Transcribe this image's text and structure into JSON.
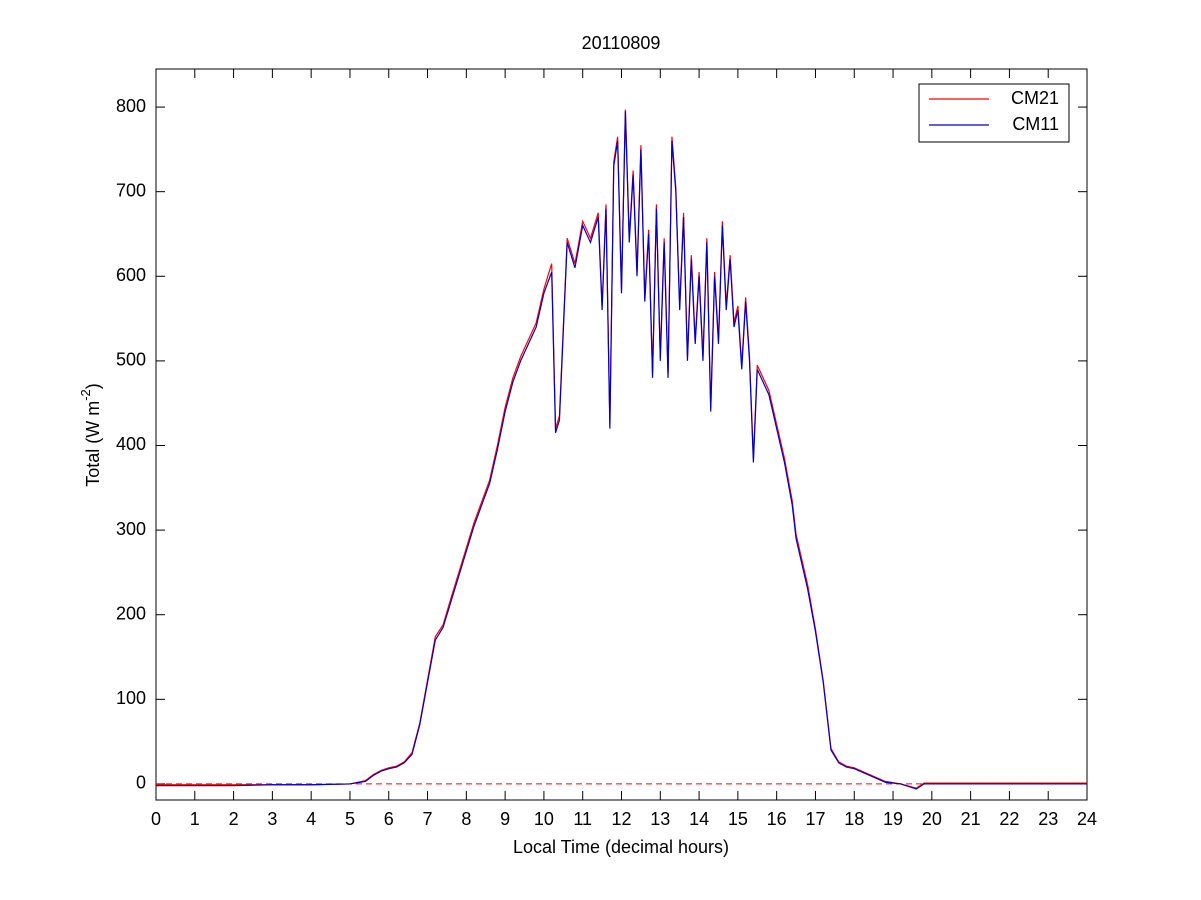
{
  "chart_data": {
    "type": "line",
    "title": "20110809",
    "xlabel": "Local Time (decimal hours)",
    "ylabel_parts": [
      "Total (W m",
      "-2",
      ")"
    ],
    "x": [
      0,
      1,
      2,
      3,
      4,
      5,
      5.4,
      5.6,
      5.8,
      6,
      6.2,
      6.4,
      6.6,
      6.8,
      7,
      7.2,
      7.4,
      7.6,
      7.8,
      8,
      8.2,
      8.4,
      8.6,
      8.8,
      9,
      9.2,
      9.4,
      9.6,
      9.8,
      10,
      10.2,
      10.3,
      10.4,
      10.6,
      10.8,
      11,
      11.2,
      11.4,
      11.5,
      11.6,
      11.7,
      11.8,
      11.9,
      12,
      12.1,
      12.2,
      12.3,
      12.4,
      12.5,
      12.6,
      12.7,
      12.8,
      12.9,
      13,
      13.1,
      13.2,
      13.3,
      13.4,
      13.5,
      13.6,
      13.7,
      13.8,
      13.9,
      14,
      14.1,
      14.2,
      14.3,
      14.4,
      14.5,
      14.6,
      14.7,
      14.8,
      14.9,
      15,
      15.1,
      15.2,
      15.3,
      15.4,
      15.5,
      15.6,
      15.8,
      16,
      16.2,
      16.4,
      16.5,
      16.6,
      16.8,
      17,
      17.2,
      17.4,
      17.6,
      17.8,
      18,
      18.4,
      18.8,
      19.2,
      19.6,
      19.8,
      20,
      21,
      22,
      23,
      24
    ],
    "series": [
      {
        "name": "CM21",
        "color": "#ff0000",
        "values": [
          -1,
          -1,
          -1,
          -1,
          -1,
          0,
          4,
          11,
          16,
          19,
          21,
          26,
          37,
          72,
          123,
          174,
          188,
          219,
          249,
          279,
          309,
          334,
          359,
          400,
          445,
          480,
          505,
          525,
          545,
          585,
          615,
          420,
          435,
          645,
          615,
          665,
          645,
          675,
          565,
          685,
          425,
          735,
          765,
          585,
          797,
          645,
          725,
          605,
          755,
          575,
          655,
          485,
          685,
          505,
          645,
          485,
          765,
          705,
          565,
          675,
          505,
          625,
          525,
          605,
          505,
          645,
          445,
          605,
          525,
          665,
          565,
          625,
          545,
          565,
          495,
          575,
          505,
          385,
          495,
          485,
          465,
          425,
          385,
          335,
          295,
          275,
          235,
          183,
          122,
          42,
          26,
          21,
          19,
          11,
          3,
          0,
          -5,
          1,
          1,
          1,
          1,
          1,
          1
        ]
      },
      {
        "name": "CM11",
        "color": "#0000cc",
        "values": [
          -2,
          -2,
          -2,
          -1,
          -1,
          0,
          3,
          10,
          15,
          18,
          20,
          25,
          35,
          70,
          120,
          170,
          185,
          215,
          245,
          275,
          305,
          330,
          355,
          395,
          440,
          475,
          500,
          520,
          540,
          580,
          605,
          415,
          430,
          640,
          610,
          660,
          640,
          670,
          560,
          680,
          420,
          730,
          760,
          580,
          795,
          640,
          720,
          600,
          750,
          570,
          650,
          480,
          680,
          500,
          640,
          480,
          760,
          700,
          560,
          670,
          500,
          620,
          520,
          600,
          500,
          640,
          440,
          600,
          520,
          660,
          560,
          620,
          540,
          560,
          490,
          570,
          500,
          380,
          490,
          480,
          460,
          420,
          380,
          330,
          290,
          270,
          230,
          180,
          120,
          40,
          25,
          20,
          18,
          10,
          2,
          0,
          -6,
          0,
          0,
          0,
          0,
          0,
          0
        ]
      }
    ],
    "reference_line": {
      "value": 0,
      "color": "#ff0000",
      "style": "dashed"
    },
    "xlim": [
      0,
      24
    ],
    "xticks": [
      0,
      1,
      2,
      3,
      4,
      5,
      6,
      7,
      8,
      9,
      10,
      11,
      12,
      13,
      14,
      15,
      16,
      17,
      18,
      19,
      20,
      21,
      22,
      23,
      24
    ],
    "ylim": [
      -19,
      845
    ],
    "yticks": [
      0,
      100,
      200,
      300,
      400,
      500,
      600,
      700,
      800
    ],
    "legend": "northeast",
    "grid": false
  }
}
